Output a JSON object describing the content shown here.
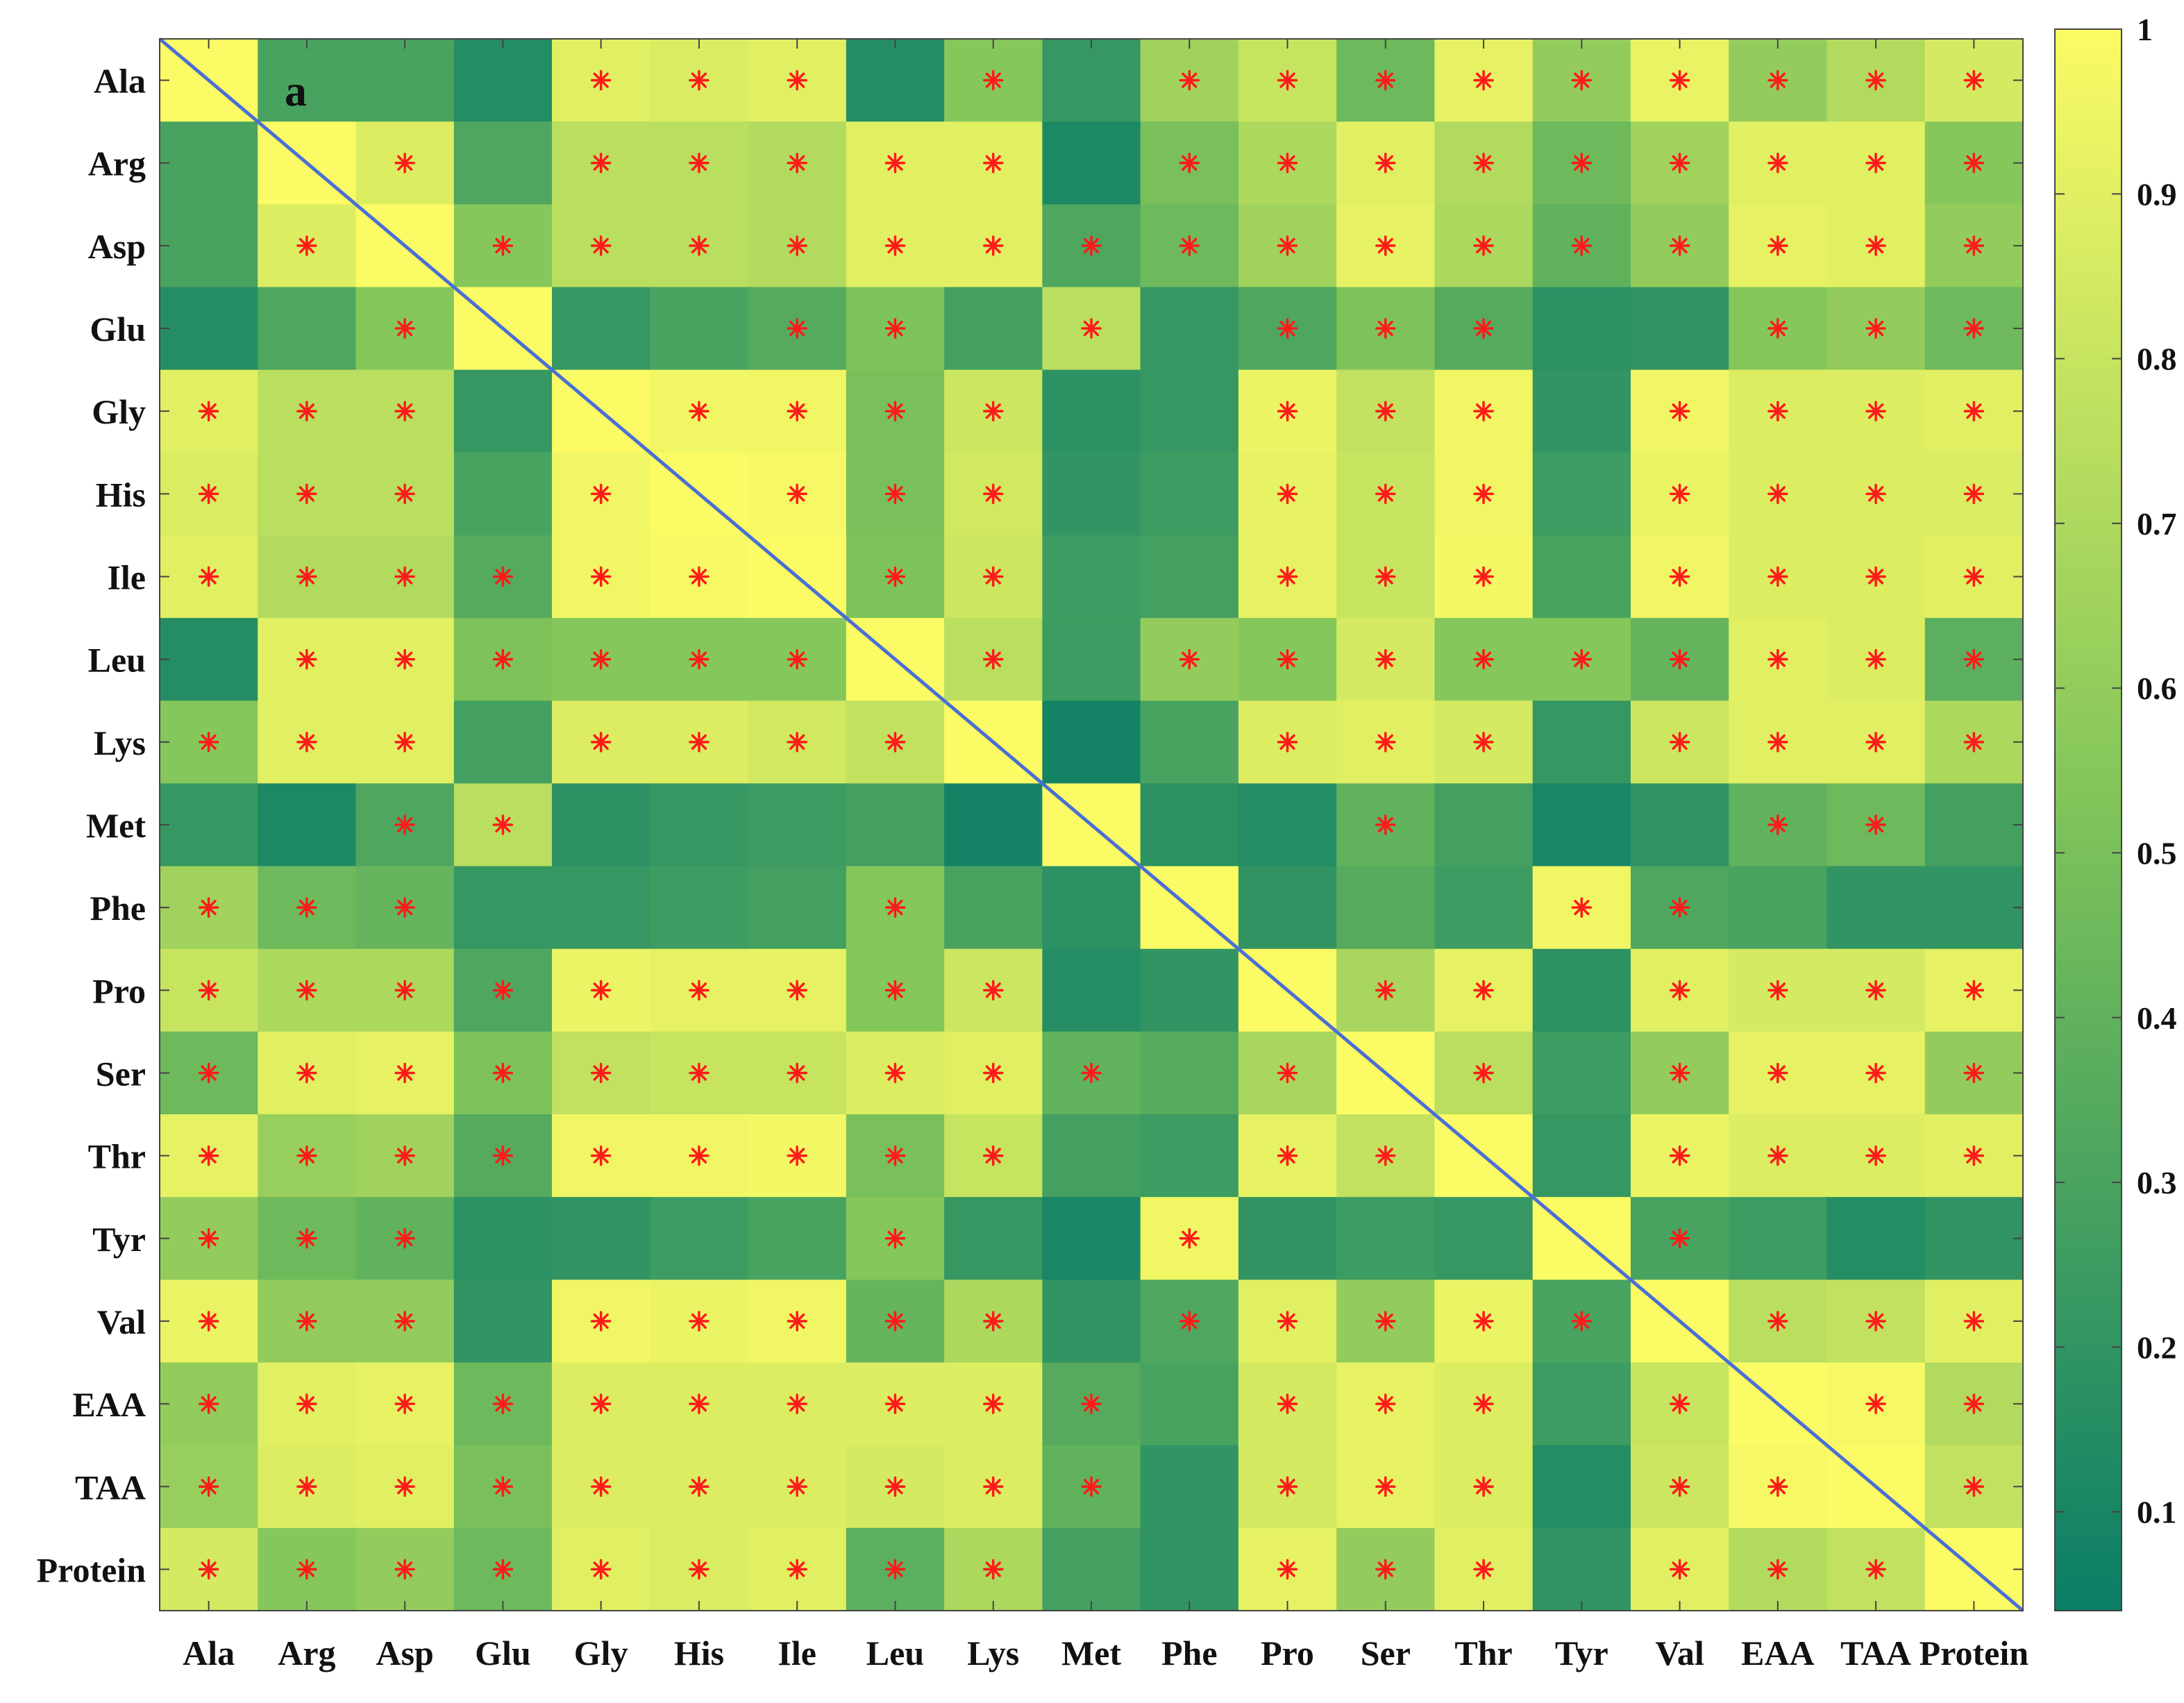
{
  "panel_label": "a",
  "colors": {
    "low": "#0a7d66",
    "mid": "#7ec35a",
    "high": "#fbfb65",
    "star": "#ff1a1a",
    "diagonal": "#4a6fd4",
    "frame": "#444444"
  },
  "chart_data": {
    "type": "heatmap",
    "title": "",
    "xlabel": "",
    "ylabel": "",
    "colorbar": {
      "range": [
        0.04,
        1.0
      ],
      "ticks": [
        0.1,
        0.2,
        0.3,
        0.4,
        0.5,
        0.6,
        0.7,
        0.8,
        0.9,
        1
      ],
      "tick_labels": [
        "0.1",
        "0.2",
        "0.3",
        "0.4",
        "0.5",
        "0.6",
        "0.7",
        "0.8",
        "0.9",
        "1"
      ],
      "placement": "right"
    },
    "diagonal_line": true,
    "row_labels": [
      "Ala",
      "Arg",
      "Asp",
      "Glu",
      "Gly",
      "His",
      "Ile",
      "Leu",
      "Lys",
      "Met",
      "Phe",
      "Pro",
      "Ser",
      "Thr",
      "Tyr",
      "Val",
      "EAA",
      "TAA",
      "Protein"
    ],
    "col_labels": [
      "Ala",
      "Arg",
      "Asp",
      "Glu",
      "Gly",
      "His",
      "Ile",
      "Leu",
      "Lys",
      "Met",
      "Phe",
      "Pro",
      "Ser",
      "Thr",
      "Tyr",
      "Val",
      "EAA",
      "TAA",
      "Protein"
    ],
    "values": [
      [
        1.0,
        0.3,
        0.3,
        0.15,
        0.9,
        0.87,
        0.9,
        0.15,
        0.55,
        0.22,
        0.65,
        0.8,
        0.45,
        0.92,
        0.6,
        0.93,
        0.6,
        0.72,
        0.85
      ],
      [
        0.3,
        1.0,
        0.88,
        0.32,
        0.75,
        0.75,
        0.72,
        0.9,
        0.9,
        0.12,
        0.5,
        0.7,
        0.9,
        0.72,
        0.45,
        0.65,
        0.9,
        0.9,
        0.55
      ],
      [
        0.3,
        0.88,
        1.0,
        0.55,
        0.75,
        0.75,
        0.72,
        0.9,
        0.9,
        0.32,
        0.45,
        0.65,
        0.92,
        0.7,
        0.4,
        0.6,
        0.92,
        0.9,
        0.6
      ],
      [
        0.15,
        0.32,
        0.55,
        1.0,
        0.22,
        0.3,
        0.35,
        0.52,
        0.28,
        0.75,
        0.22,
        0.32,
        0.52,
        0.35,
        0.18,
        0.2,
        0.55,
        0.6,
        0.45
      ],
      [
        0.9,
        0.75,
        0.75,
        0.22,
        1.0,
        0.96,
        0.96,
        0.5,
        0.82,
        0.18,
        0.22,
        0.94,
        0.78,
        0.96,
        0.2,
        0.96,
        0.88,
        0.88,
        0.9
      ],
      [
        0.87,
        0.75,
        0.75,
        0.3,
        0.96,
        1.0,
        0.98,
        0.5,
        0.84,
        0.2,
        0.25,
        0.92,
        0.8,
        0.96,
        0.25,
        0.94,
        0.88,
        0.88,
        0.87
      ],
      [
        0.9,
        0.72,
        0.72,
        0.35,
        0.96,
        0.98,
        1.0,
        0.52,
        0.82,
        0.25,
        0.28,
        0.92,
        0.8,
        0.97,
        0.3,
        0.96,
        0.88,
        0.88,
        0.9
      ],
      [
        0.15,
        0.9,
        0.9,
        0.52,
        0.55,
        0.55,
        0.55,
        1.0,
        0.75,
        0.25,
        0.6,
        0.55,
        0.85,
        0.55,
        0.55,
        0.42,
        0.9,
        0.88,
        0.38
      ],
      [
        0.55,
        0.9,
        0.9,
        0.28,
        0.88,
        0.88,
        0.84,
        0.78,
        1.0,
        0.08,
        0.3,
        0.88,
        0.9,
        0.85,
        0.22,
        0.82,
        0.9,
        0.9,
        0.7
      ],
      [
        0.22,
        0.12,
        0.32,
        0.75,
        0.18,
        0.22,
        0.25,
        0.28,
        0.08,
        1.0,
        0.18,
        0.15,
        0.4,
        0.28,
        0.1,
        0.2,
        0.4,
        0.45,
        0.28
      ],
      [
        0.65,
        0.45,
        0.42,
        0.22,
        0.22,
        0.25,
        0.28,
        0.55,
        0.3,
        0.18,
        1.0,
        0.2,
        0.35,
        0.25,
        0.96,
        0.32,
        0.3,
        0.2,
        0.2
      ],
      [
        0.8,
        0.7,
        0.7,
        0.32,
        0.94,
        0.92,
        0.92,
        0.55,
        0.82,
        0.15,
        0.2,
        1.0,
        0.68,
        0.92,
        0.18,
        0.9,
        0.85,
        0.85,
        0.92
      ],
      [
        0.45,
        0.9,
        0.92,
        0.52,
        0.78,
        0.8,
        0.8,
        0.88,
        0.9,
        0.4,
        0.35,
        0.68,
        1.0,
        0.75,
        0.25,
        0.6,
        0.92,
        0.92,
        0.6
      ],
      [
        0.92,
        0.62,
        0.65,
        0.35,
        0.96,
        0.96,
        0.97,
        0.5,
        0.8,
        0.28,
        0.25,
        0.92,
        0.78,
        1.0,
        0.22,
        0.94,
        0.88,
        0.88,
        0.9
      ],
      [
        0.6,
        0.45,
        0.4,
        0.18,
        0.2,
        0.25,
        0.3,
        0.55,
        0.22,
        0.1,
        0.96,
        0.2,
        0.25,
        0.22,
        1.0,
        0.3,
        0.25,
        0.15,
        0.2
      ],
      [
        0.93,
        0.6,
        0.6,
        0.2,
        0.96,
        0.94,
        0.96,
        0.42,
        0.7,
        0.2,
        0.32,
        0.9,
        0.6,
        0.94,
        0.3,
        1.0,
        0.75,
        0.78,
        0.9
      ],
      [
        0.6,
        0.9,
        0.92,
        0.45,
        0.88,
        0.88,
        0.88,
        0.88,
        0.88,
        0.35,
        0.3,
        0.85,
        0.92,
        0.88,
        0.25,
        0.8,
        1.0,
        0.98,
        0.72
      ],
      [
        0.62,
        0.88,
        0.9,
        0.5,
        0.88,
        0.88,
        0.88,
        0.85,
        0.88,
        0.4,
        0.2,
        0.85,
        0.92,
        0.88,
        0.15,
        0.82,
        0.98,
        1.0,
        0.78
      ],
      [
        0.85,
        0.55,
        0.6,
        0.45,
        0.9,
        0.87,
        0.9,
        0.38,
        0.7,
        0.28,
        0.2,
        0.92,
        0.6,
        0.9,
        0.2,
        0.9,
        0.72,
        0.78,
        1.0
      ]
    ],
    "significant": [
      [
        0,
        0,
        0,
        0,
        1,
        1,
        1,
        0,
        1,
        0,
        1,
        1,
        1,
        1,
        1,
        1,
        1,
        1,
        1
      ],
      [
        0,
        0,
        1,
        0,
        1,
        1,
        1,
        1,
        1,
        0,
        1,
        1,
        1,
        1,
        1,
        1,
        1,
        1,
        1
      ],
      [
        0,
        1,
        0,
        1,
        1,
        1,
        1,
        1,
        1,
        1,
        1,
        1,
        1,
        1,
        1,
        1,
        1,
        1,
        1
      ],
      [
        0,
        0,
        1,
        0,
        0,
        0,
        1,
        1,
        0,
        1,
        0,
        1,
        1,
        1,
        0,
        0,
        1,
        1,
        1
      ],
      [
        1,
        1,
        1,
        0,
        0,
        1,
        1,
        1,
        1,
        0,
        0,
        1,
        1,
        1,
        0,
        1,
        1,
        1,
        1
      ],
      [
        1,
        1,
        1,
        0,
        1,
        0,
        1,
        1,
        1,
        0,
        0,
        1,
        1,
        1,
        0,
        1,
        1,
        1,
        1
      ],
      [
        1,
        1,
        1,
        1,
        1,
        1,
        0,
        1,
        1,
        0,
        0,
        1,
        1,
        1,
        0,
        1,
        1,
        1,
        1
      ],
      [
        0,
        1,
        1,
        1,
        1,
        1,
        1,
        0,
        1,
        0,
        1,
        1,
        1,
        1,
        1,
        1,
        1,
        1,
        1
      ],
      [
        1,
        1,
        1,
        0,
        1,
        1,
        1,
        1,
        0,
        0,
        0,
        1,
        1,
        1,
        0,
        1,
        1,
        1,
        1
      ],
      [
        0,
        0,
        1,
        1,
        0,
        0,
        0,
        0,
        0,
        0,
        0,
        0,
        1,
        0,
        0,
        0,
        1,
        1,
        0
      ],
      [
        1,
        1,
        1,
        0,
        0,
        0,
        0,
        1,
        0,
        0,
        0,
        0,
        0,
        0,
        1,
        1,
        0,
        0,
        0
      ],
      [
        1,
        1,
        1,
        1,
        1,
        1,
        1,
        1,
        1,
        0,
        0,
        0,
        1,
        1,
        0,
        1,
        1,
        1,
        1
      ],
      [
        1,
        1,
        1,
        1,
        1,
        1,
        1,
        1,
        1,
        1,
        0,
        1,
        0,
        1,
        0,
        1,
        1,
        1,
        1
      ],
      [
        1,
        1,
        1,
        1,
        1,
        1,
        1,
        1,
        1,
        0,
        0,
        1,
        1,
        0,
        0,
        1,
        1,
        1,
        1
      ],
      [
        1,
        1,
        1,
        0,
        0,
        0,
        0,
        1,
        0,
        0,
        1,
        0,
        0,
        0,
        0,
        1,
        0,
        0,
        0
      ],
      [
        1,
        1,
        1,
        0,
        1,
        1,
        1,
        1,
        1,
        0,
        1,
        1,
        1,
        1,
        1,
        0,
        1,
        1,
        1
      ],
      [
        1,
        1,
        1,
        1,
        1,
        1,
        1,
        1,
        1,
        1,
        0,
        1,
        1,
        1,
        0,
        1,
        0,
        1,
        1
      ],
      [
        1,
        1,
        1,
        1,
        1,
        1,
        1,
        1,
        1,
        1,
        0,
        1,
        1,
        1,
        0,
        1,
        1,
        0,
        1
      ],
      [
        1,
        1,
        1,
        1,
        1,
        1,
        1,
        1,
        1,
        0,
        0,
        1,
        1,
        1,
        0,
        1,
        1,
        1,
        0
      ]
    ]
  }
}
